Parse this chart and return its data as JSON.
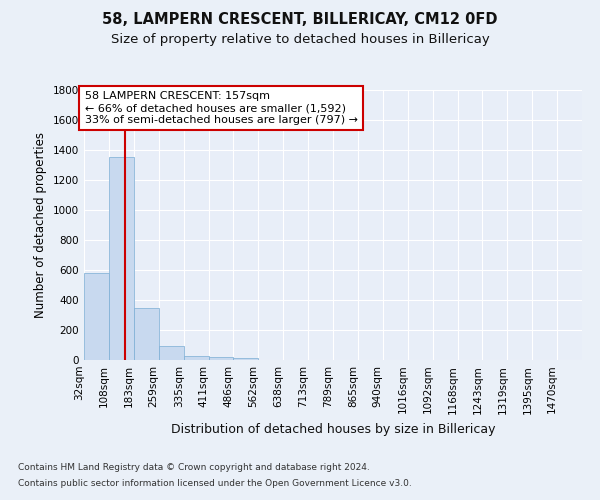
{
  "title1": "58, LAMPERN CRESCENT, BILLERICAY, CM12 0FD",
  "title2": "Size of property relative to detached houses in Billericay",
  "xlabel": "Distribution of detached houses by size in Billericay",
  "ylabel": "Number of detached properties",
  "bin_edges": [
    32,
    108,
    183,
    259,
    335,
    411,
    486,
    562,
    638,
    713,
    789,
    865,
    940,
    1016,
    1092,
    1168,
    1243,
    1319,
    1395,
    1470,
    1546
  ],
  "bar_heights": [
    580,
    1350,
    350,
    95,
    30,
    20,
    15,
    0,
    0,
    0,
    0,
    0,
    0,
    0,
    0,
    0,
    0,
    0,
    0,
    0
  ],
  "bar_color": "#c8d9ef",
  "bar_edgecolor": "#7aadd4",
  "property_size": 157,
  "vline_color": "#cc0000",
  "annotation_line1": "58 LAMPERN CRESCENT: 157sqm",
  "annotation_line2": "← 66% of detached houses are smaller (1,592)",
  "annotation_line3": "33% of semi-detached houses are larger (797) →",
  "annotation_box_color": "white",
  "annotation_box_edgecolor": "#cc0000",
  "ylim": [
    0,
    1800
  ],
  "yticks": [
    0,
    200,
    400,
    600,
    800,
    1000,
    1200,
    1400,
    1600,
    1800
  ],
  "bg_color": "#eaf0f8",
  "plot_bg_color": "#e8eef8",
  "grid_color": "#d0d8e8",
  "footnote1": "Contains HM Land Registry data © Crown copyright and database right 2024.",
  "footnote2": "Contains public sector information licensed under the Open Government Licence v3.0.",
  "title1_fontsize": 10.5,
  "title2_fontsize": 9.5,
  "xlabel_fontsize": 9,
  "ylabel_fontsize": 8.5,
  "tick_fontsize": 7.5,
  "annot_fontsize": 8,
  "footnote_fontsize": 6.5
}
